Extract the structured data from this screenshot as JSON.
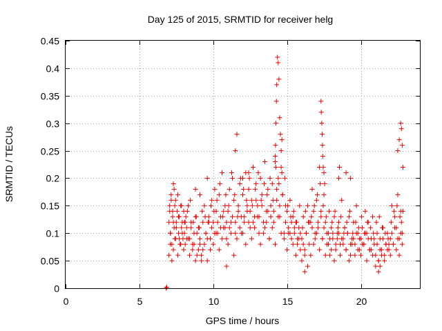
{
  "chart_data": {
    "type": "scatter",
    "title": "Day 125 of 2015, SRMTID for receiver helg",
    "xlabel": "GPS time / hours",
    "ylabel": "SRMTID / TECUs",
    "xlim": [
      0,
      24
    ],
    "ylim": [
      0,
      0.45
    ],
    "xticks": [
      0,
      5,
      10,
      15,
      20
    ],
    "xtick_labels": [
      "0",
      "5",
      "10",
      "15",
      "20"
    ],
    "yticks": [
      0,
      0.05,
      0.1,
      0.15,
      0.2,
      0.25,
      0.3,
      0.35,
      0.4,
      0.45
    ],
    "ytick_labels": [
      "0",
      "0.05",
      "0.1",
      "0.15",
      "0.2",
      "0.25",
      "0.3",
      "0.35",
      "0.4",
      "0.45"
    ],
    "grid": true,
    "marker": "plus",
    "marker_color": "#e00000",
    "series": [
      {
        "name": "SRMTID",
        "x": [
          6.8,
          6.85,
          7.0,
          7.05,
          7.1,
          7.15,
          7.2,
          7.25,
          7.3,
          7.35,
          7.4,
          7.45,
          7.5,
          7.55,
          7.6,
          7.65,
          7.7,
          7.75,
          7.8,
          7.85,
          7.9,
          7.95,
          8.0,
          8.05,
          8.1,
          8.15,
          8.2,
          8.3,
          8.4,
          8.5,
          8.6,
          8.7,
          8.8,
          8.9,
          9.0,
          9.1,
          9.2,
          9.3,
          9.4,
          9.5,
          9.6,
          9.7,
          9.8,
          9.9,
          10.0,
          10.1,
          10.2,
          10.3,
          10.4,
          10.5,
          10.6,
          10.7,
          10.8,
          10.9,
          11.0,
          11.1,
          11.2,
          11.3,
          11.4,
          11.5,
          11.6,
          11.7,
          11.8,
          11.9,
          12.0,
          12.1,
          12.2,
          12.3,
          12.4,
          12.5,
          12.6,
          12.7,
          12.8,
          12.9,
          13.0,
          13.1,
          13.2,
          13.3,
          13.4,
          13.5,
          13.6,
          13.7,
          13.8,
          13.9,
          14.0,
          14.1,
          14.2,
          14.3,
          14.4,
          14.5,
          14.6,
          14.7,
          14.8,
          14.9,
          15.0,
          15.1,
          15.2,
          15.3,
          15.4,
          15.5,
          15.6,
          15.7,
          15.8,
          15.9,
          16.0,
          16.1,
          16.2,
          16.3,
          16.4,
          16.5,
          16.6,
          16.7,
          16.8,
          16.9,
          17.0,
          17.1,
          17.2,
          17.3,
          17.4,
          17.5,
          17.6,
          17.7,
          17.8,
          17.9,
          18.0,
          18.1,
          18.2,
          18.3,
          18.4,
          18.5,
          18.6,
          18.7,
          18.8,
          18.9,
          19.0,
          19.1,
          19.2,
          19.3,
          19.4,
          19.5,
          19.6,
          19.7,
          19.8,
          19.9,
          20.0,
          20.1,
          20.2,
          20.3,
          20.4,
          20.5,
          20.6,
          20.7,
          20.8,
          20.9,
          21.0,
          21.1,
          21.2,
          21.3,
          21.4,
          21.5,
          21.6,
          21.7,
          21.8,
          21.9,
          22.0,
          22.1,
          22.2,
          22.3,
          22.4,
          22.5,
          22.6,
          22.7,
          22.75,
          22.8,
          7.0,
          7.1,
          7.2,
          7.3,
          7.4,
          7.6,
          7.8,
          8.0,
          8.2,
          8.4,
          8.6,
          8.8,
          9.0,
          9.2,
          9.4,
          9.6,
          9.8,
          10.0,
          10.2,
          10.4,
          10.6,
          10.8,
          11.0,
          11.2,
          11.4,
          11.6,
          11.8,
          12.0,
          12.2,
          12.4,
          12.6,
          12.8,
          13.0,
          13.2,
          13.4,
          13.6,
          13.8,
          14.0,
          14.2,
          14.4,
          14.6,
          14.8,
          15.0,
          15.2,
          15.4,
          15.6,
          15.8,
          16.0,
          16.2,
          16.4,
          16.6,
          16.8,
          17.0,
          17.2,
          17.4,
          17.6,
          17.8,
          18.0,
          18.2,
          18.4,
          18.6,
          18.8,
          19.0,
          19.2,
          19.4,
          19.6,
          19.8,
          20.0,
          20.2,
          20.4,
          20.6,
          20.8,
          21.0,
          21.2,
          21.4,
          21.6,
          21.8,
          22.0,
          22.2,
          22.4,
          22.6,
          22.8,
          7.05,
          7.15,
          7.25,
          7.35,
          7.45,
          7.65,
          7.85,
          8.05,
          8.25,
          8.45,
          8.65,
          8.85,
          9.05,
          9.25,
          9.45,
          9.65,
          9.85,
          10.05,
          10.25,
          10.45,
          10.65,
          10.85,
          11.05,
          11.25,
          11.45,
          11.65,
          11.85,
          12.05,
          12.25,
          12.45,
          12.65,
          12.85,
          13.05,
          13.25,
          13.45,
          13.65,
          13.85,
          14.05,
          14.25,
          14.45,
          14.65,
          14.85,
          15.05,
          15.25,
          15.45,
          15.65,
          15.85,
          16.05,
          16.25,
          16.45,
          16.65,
          16.85,
          17.05,
          17.25,
          17.45,
          17.65,
          17.85,
          18.05,
          18.25,
          18.45,
          18.65,
          18.85,
          19.05,
          19.25,
          19.45,
          19.65,
          19.85,
          20.05,
          20.25,
          20.45,
          20.65,
          20.85,
          21.05,
          21.25,
          21.45,
          21.65,
          21.85,
          22.05,
          22.25,
          22.45,
          22.65,
          22.85,
          7.1,
          7.3,
          7.5,
          7.7,
          7.9,
          8.1,
          8.3,
          8.5,
          8.7,
          8.9,
          9.1,
          9.3,
          9.5,
          9.7,
          9.9,
          10.1,
          10.3,
          10.5,
          10.7,
          10.9,
          11.1,
          11.3,
          11.5,
          11.7,
          11.9,
          12.1,
          12.3,
          12.5,
          12.7,
          12.9,
          13.1,
          13.3,
          13.5,
          13.7,
          13.9,
          14.1,
          14.3,
          14.5,
          14.7,
          14.9,
          15.1,
          15.3,
          15.5,
          15.7,
          15.9,
          16.1,
          16.3,
          16.5,
          16.7,
          16.9,
          17.1,
          17.3,
          17.5,
          17.7,
          17.9,
          18.1,
          18.3,
          18.5,
          18.7,
          18.9,
          19.1,
          19.3,
          19.5,
          19.7,
          19.9,
          20.1,
          20.3,
          20.5,
          20.7,
          20.9,
          21.1,
          21.3,
          21.5,
          21.7,
          21.9,
          22.1,
          22.3,
          22.5,
          22.7,
          14.2,
          14.22,
          14.25,
          14.28,
          14.3,
          14.35,
          14.4,
          14.45,
          14.5,
          14.55,
          14.6,
          14.65,
          17.3,
          17.32,
          17.35,
          17.38,
          17.4,
          17.42,
          17.45,
          17.5,
          17.55,
          18.5,
          18.55,
          19.0,
          19.3,
          22.5,
          22.6,
          22.7,
          22.75,
          22.8,
          22.85,
          11.5,
          12.0,
          12.4,
          10.9,
          9.6,
          21.2,
          21.3,
          16.2,
          8.8,
          9.1
        ],
        "y": [
          0.0,
          0.002,
          0.12,
          0.14,
          0.1,
          0.16,
          0.08,
          0.13,
          0.19,
          0.11,
          0.15,
          0.09,
          0.12,
          0.14,
          0.17,
          0.1,
          0.13,
          0.08,
          0.15,
          0.11,
          0.12,
          0.09,
          0.14,
          0.1,
          0.08,
          0.13,
          0.11,
          0.15,
          0.09,
          0.12,
          0.07,
          0.1,
          0.13,
          0.06,
          0.11,
          0.08,
          0.05,
          0.12,
          0.15,
          0.1,
          0.2,
          0.13,
          0.09,
          0.16,
          0.12,
          0.18,
          0.14,
          0.1,
          0.17,
          0.13,
          0.21,
          0.11,
          0.15,
          0.09,
          0.14,
          0.18,
          0.12,
          0.2,
          0.16,
          0.1,
          0.28,
          0.15,
          0.19,
          0.13,
          0.17,
          0.12,
          0.21,
          0.14,
          0.18,
          0.11,
          0.16,
          0.22,
          0.13,
          0.19,
          0.15,
          0.1,
          0.2,
          0.17,
          0.12,
          0.23,
          0.14,
          0.18,
          0.09,
          0.15,
          0.19,
          0.12,
          0.24,
          0.16,
          0.2,
          0.13,
          0.22,
          0.17,
          0.1,
          0.15,
          0.14,
          0.11,
          0.16,
          0.09,
          0.13,
          0.1,
          0.12,
          0.08,
          0.11,
          0.07,
          0.09,
          0.13,
          0.06,
          0.1,
          0.15,
          0.08,
          0.12,
          0.18,
          0.14,
          0.1,
          0.16,
          0.11,
          0.22,
          0.13,
          0.09,
          0.17,
          0.12,
          0.08,
          0.1,
          0.06,
          0.11,
          0.09,
          0.13,
          0.07,
          0.1,
          0.12,
          0.08,
          0.16,
          0.09,
          0.11,
          0.07,
          0.1,
          0.13,
          0.06,
          0.09,
          0.12,
          0.08,
          0.15,
          0.1,
          0.07,
          0.09,
          0.11,
          0.08,
          0.14,
          0.1,
          0.12,
          0.07,
          0.09,
          0.13,
          0.08,
          0.06,
          0.1,
          0.05,
          0.09,
          0.07,
          0.11,
          0.06,
          0.08,
          0.1,
          0.07,
          0.09,
          0.15,
          0.08,
          0.13,
          0.11,
          0.17,
          0.09,
          0.14,
          0.12,
          0.1,
          0.06,
          0.08,
          0.05,
          0.07,
          0.09,
          0.06,
          0.08,
          0.07,
          0.09,
          0.06,
          0.08,
          0.05,
          0.07,
          0.06,
          0.08,
          0.09,
          0.07,
          0.08,
          0.1,
          0.07,
          0.09,
          0.11,
          0.08,
          0.1,
          0.06,
          0.09,
          0.11,
          0.1,
          0.08,
          0.12,
          0.09,
          0.11,
          0.13,
          0.08,
          0.1,
          0.12,
          0.09,
          0.11,
          0.08,
          0.13,
          0.1,
          0.09,
          0.07,
          0.1,
          0.08,
          0.06,
          0.09,
          0.05,
          0.07,
          0.04,
          0.06,
          0.08,
          0.1,
          0.07,
          0.09,
          0.06,
          0.08,
          0.07,
          0.05,
          0.09,
          0.06,
          0.08,
          0.07,
          0.05,
          0.08,
          0.06,
          0.07,
          0.06,
          0.08,
          0.05,
          0.07,
          0.06,
          0.04,
          0.05,
          0.06,
          0.05,
          0.07,
          0.06,
          0.08,
          0.07,
          0.06,
          0.08,
          0.15,
          0.17,
          0.14,
          0.18,
          0.16,
          0.13,
          0.15,
          0.12,
          0.14,
          0.16,
          0.12,
          0.13,
          0.11,
          0.14,
          0.13,
          0.12,
          0.15,
          0.14,
          0.16,
          0.19,
          0.13,
          0.17,
          0.15,
          0.21,
          0.17,
          0.13,
          0.2,
          0.18,
          0.16,
          0.2,
          0.15,
          0.18,
          0.21,
          0.16,
          0.19,
          0.17,
          0.2,
          0.16,
          0.22,
          0.19,
          0.21,
          0.2,
          0.15,
          0.13,
          0.14,
          0.12,
          0.15,
          0.11,
          0.14,
          0.12,
          0.13,
          0.15,
          0.17,
          0.19,
          0.15,
          0.13,
          0.14,
          0.12,
          0.14,
          0.11,
          0.13,
          0.1,
          0.12,
          0.14,
          0.1,
          0.12,
          0.11,
          0.13,
          0.1,
          0.12,
          0.11,
          0.1,
          0.12,
          0.13,
          0.11,
          0.1,
          0.09,
          0.12,
          0.14,
          0.15,
          0.13,
          0.14,
          0.1,
          0.12,
          0.11,
          0.09,
          0.1,
          0.12,
          0.09,
          0.11,
          0.08,
          0.1,
          0.09,
          0.07,
          0.1,
          0.12,
          0.11,
          0.1,
          0.12,
          0.11,
          0.14,
          0.12,
          0.11,
          0.13,
          0.12,
          0.14,
          0.1,
          0.13,
          0.15,
          0.14,
          0.12,
          0.16,
          0.13,
          0.15,
          0.11,
          0.14,
          0.13,
          0.14,
          0.18,
          0.15,
          0.17,
          0.12,
          0.1,
          0.12,
          0.11,
          0.09,
          0.1,
          0.08,
          0.1,
          0.12,
          0.11,
          0.09,
          0.12,
          0.14,
          0.11,
          0.1,
          0.09,
          0.1,
          0.08,
          0.1,
          0.09,
          0.11,
          0.1,
          0.08,
          0.09,
          0.1,
          0.09,
          0.08,
          0.1,
          0.09,
          0.07,
          0.09,
          0.08,
          0.07,
          0.09,
          0.08,
          0.08,
          0.1,
          0.11,
          0.09,
          0.1,
          0.23,
          0.26,
          0.3,
          0.34,
          0.37,
          0.42,
          0.41,
          0.38,
          0.31,
          0.28,
          0.25,
          0.27,
          0.34,
          0.32,
          0.3,
          0.28,
          0.26,
          0.24,
          0.22,
          0.21,
          0.19,
          0.2,
          0.22,
          0.21,
          0.2,
          0.25,
          0.27,
          0.3,
          0.29,
          0.26,
          0.22,
          0.25,
          0.2,
          0.21,
          0.04,
          0.05,
          0.03,
          0.04,
          0.03,
          0.18,
          0.17
        ]
      }
    ]
  }
}
